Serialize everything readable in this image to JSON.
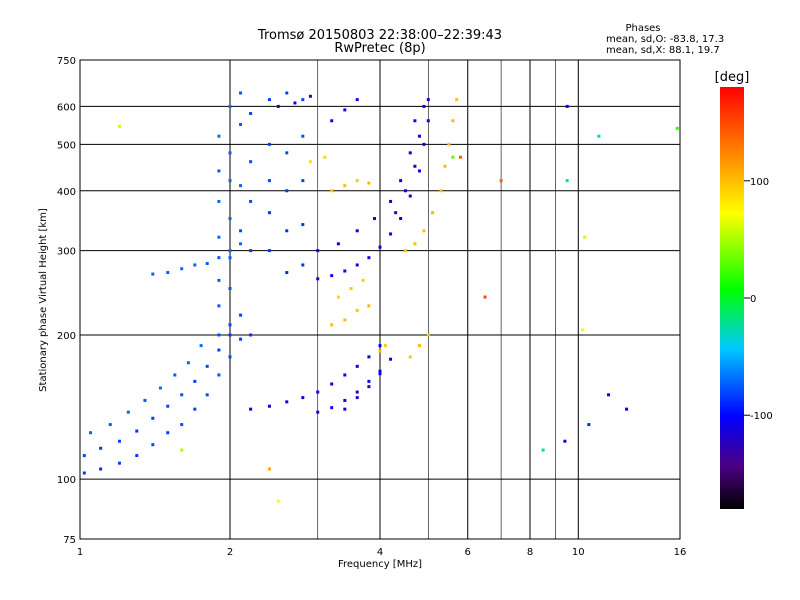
{
  "title": {
    "line1": "Tromsø 20150803 22:38:00–22:39:43",
    "line2": "RwPretec (8p)"
  },
  "stats": {
    "heading": "Phases",
    "o_line": "mean, sd,O: -83.8, 17.3",
    "x_line": "mean, sd,X: 88.1, 19.7"
  },
  "colorbar": {
    "label": "[deg]",
    "range": [
      -180,
      180
    ],
    "ticks": [
      {
        "value": 100,
        "label": "100"
      },
      {
        "value": 0,
        "label": "0"
      },
      {
        "value": -100,
        "label": "-100"
      }
    ]
  },
  "chart_data": {
    "type": "scatter",
    "xlabel": "Frequency [MHz]",
    "ylabel": "Stationary phase Virtual Height [km]",
    "xscale": "log",
    "yscale": "log",
    "xlim": [
      1,
      16
    ],
    "ylim": [
      75,
      750
    ],
    "grid": true,
    "x_ticks": [
      {
        "value": 1,
        "label": "1",
        "grid": false
      },
      {
        "value": 2,
        "label": "2",
        "grid": true
      },
      {
        "value": 4,
        "label": "4",
        "grid": true
      },
      {
        "value": 6,
        "label": "6",
        "grid": true
      },
      {
        "value": 8,
        "label": "8",
        "grid": true
      },
      {
        "value": 10,
        "label": "10",
        "grid": true
      },
      {
        "value": 16,
        "label": "16",
        "grid": false
      }
    ],
    "x_minor_grid": [
      3,
      5,
      7,
      9
    ],
    "y_ticks": [
      {
        "value": 75,
        "label": "75",
        "grid": false
      },
      {
        "value": 100,
        "label": "100",
        "grid": true
      },
      {
        "value": 200,
        "label": "200",
        "grid": true
      },
      {
        "value": 300,
        "label": "300",
        "grid": true
      },
      {
        "value": 400,
        "label": "400",
        "grid": true
      },
      {
        "value": 500,
        "label": "500",
        "grid": true
      },
      {
        "value": 600,
        "label": "600",
        "grid": true
      },
      {
        "value": 750,
        "label": "750",
        "grid": false
      }
    ],
    "series": [
      {
        "points": [
          [
            1.02,
            103,
            -85
          ],
          [
            1.1,
            105,
            -88
          ],
          [
            1.2,
            108,
            -82
          ],
          [
            1.3,
            112,
            -86
          ],
          [
            1.4,
            118,
            -80
          ],
          [
            1.5,
            125,
            -84
          ],
          [
            1.6,
            130,
            -78
          ],
          [
            1.7,
            140,
            -82
          ],
          [
            1.8,
            150,
            -80
          ],
          [
            1.9,
            165,
            -76
          ],
          [
            2.0,
            180,
            -80
          ],
          [
            2.1,
            196,
            -84
          ],
          [
            1.02,
            112,
            -80
          ],
          [
            1.1,
            116,
            -84
          ],
          [
            1.2,
            120,
            -82
          ],
          [
            1.3,
            126,
            -86
          ],
          [
            1.4,
            134,
            -84
          ],
          [
            1.5,
            142,
            -80
          ],
          [
            1.6,
            150,
            -78
          ],
          [
            1.7,
            160,
            -82
          ],
          [
            1.8,
            172,
            -80
          ],
          [
            1.9,
            186,
            -82
          ],
          [
            2.0,
            200,
            -84
          ],
          [
            1.05,
            125,
            -72
          ],
          [
            1.15,
            130,
            -74
          ],
          [
            1.25,
            138,
            -72
          ],
          [
            1.35,
            146,
            -76
          ],
          [
            1.45,
            155,
            -70
          ],
          [
            1.55,
            165,
            -74
          ],
          [
            1.65,
            175,
            -72
          ],
          [
            1.75,
            190,
            -70
          ],
          [
            1.4,
            268,
            -72
          ],
          [
            1.5,
            270,
            -74
          ],
          [
            1.6,
            275,
            -70
          ],
          [
            1.7,
            280,
            -72
          ],
          [
            1.8,
            282,
            -74
          ],
          [
            1.9,
            290,
            -76
          ],
          [
            2.0,
            300,
            -72
          ],
          [
            2.1,
            310,
            -70
          ],
          [
            1.9,
            200,
            -78
          ],
          [
            1.9,
            230,
            -76
          ],
          [
            1.9,
            260,
            -74
          ],
          [
            1.9,
            320,
            -70
          ],
          [
            1.9,
            380,
            -72
          ],
          [
            1.9,
            440,
            -74
          ],
          [
            1.9,
            520,
            -70
          ],
          [
            2.0,
            210,
            -80
          ],
          [
            2.0,
            250,
            -76
          ],
          [
            2.0,
            290,
            -74
          ],
          [
            2.0,
            350,
            -72
          ],
          [
            2.0,
            420,
            -70
          ],
          [
            2.0,
            480,
            -74
          ],
          [
            2.0,
            600,
            -70
          ],
          [
            2.1,
            220,
            -82
          ],
          [
            2.1,
            330,
            -78
          ],
          [
            2.1,
            410,
            -72
          ],
          [
            2.1,
            550,
            -74
          ],
          [
            2.1,
            640,
            -76
          ],
          [
            2.2,
            200,
            -86
          ],
          [
            2.2,
            300,
            -84
          ],
          [
            2.2,
            380,
            -80
          ],
          [
            2.2,
            460,
            -78
          ],
          [
            2.2,
            580,
            -82
          ],
          [
            2.4,
            300,
            -86
          ],
          [
            2.4,
            360,
            -84
          ],
          [
            2.4,
            420,
            -80
          ],
          [
            2.4,
            500,
            -82
          ],
          [
            2.4,
            620,
            -84
          ],
          [
            2.6,
            270,
            -88
          ],
          [
            2.6,
            330,
            -86
          ],
          [
            2.6,
            400,
            -84
          ],
          [
            2.6,
            480,
            -80
          ],
          [
            2.6,
            640,
            -82
          ],
          [
            2.8,
            280,
            -86
          ],
          [
            2.8,
            340,
            -84
          ],
          [
            2.8,
            420,
            -80
          ],
          [
            2.8,
            520,
            -78
          ],
          [
            2.8,
            620,
            -80
          ]
        ]
      },
      {
        "points": [
          [
            2.2,
            140,
            -110
          ],
          [
            2.4,
            142,
            -112
          ],
          [
            2.6,
            145,
            -108
          ],
          [
            2.8,
            148,
            -114
          ],
          [
            3.0,
            152,
            -110
          ],
          [
            3.2,
            158,
            -112
          ],
          [
            3.4,
            165,
            -108
          ],
          [
            3.6,
            172,
            -110
          ],
          [
            3.8,
            180,
            -112
          ],
          [
            4.0,
            190,
            -108
          ],
          [
            3.0,
            138,
            -110
          ],
          [
            3.2,
            141,
            -112
          ],
          [
            3.4,
            146,
            -110
          ],
          [
            3.6,
            152,
            -114
          ],
          [
            3.8,
            160,
            -110
          ],
          [
            4.0,
            168,
            -112
          ],
          [
            4.2,
            178,
            -110
          ],
          [
            3.0,
            262,
            -110
          ],
          [
            3.2,
            266,
            -112
          ],
          [
            3.4,
            272,
            -110
          ],
          [
            3.6,
            280,
            -114
          ],
          [
            3.8,
            290,
            -112
          ],
          [
            4.0,
            305,
            -110
          ],
          [
            4.2,
            325,
            -112
          ],
          [
            4.4,
            350,
            -110
          ],
          [
            4.6,
            390,
            -112
          ],
          [
            4.8,
            440,
            -110
          ],
          [
            4.9,
            500,
            -112
          ],
          [
            5.0,
            560,
            -110
          ],
          [
            5.0,
            620,
            -114
          ],
          [
            3.0,
            300,
            -110
          ],
          [
            3.3,
            310,
            -112
          ],
          [
            3.6,
            330,
            -110
          ],
          [
            3.9,
            350,
            -114
          ],
          [
            4.2,
            380,
            -112
          ],
          [
            4.4,
            420,
            -110
          ],
          [
            4.6,
            480,
            -112
          ],
          [
            4.7,
            560,
            -110
          ],
          [
            3.4,
            140,
            -108
          ],
          [
            3.6,
            148,
            -112
          ],
          [
            3.8,
            156,
            -110
          ],
          [
            4.0,
            166,
            -112
          ],
          [
            4.3,
            360,
            -118
          ],
          [
            4.5,
            400,
            -116
          ],
          [
            4.7,
            450,
            -112
          ],
          [
            4.8,
            520,
            -114
          ],
          [
            4.9,
            600,
            -110
          ],
          [
            2.5,
            600,
            -118
          ],
          [
            2.7,
            610,
            -120
          ],
          [
            2.9,
            630,
            -116
          ],
          [
            3.2,
            560,
            -114
          ],
          [
            3.4,
            590,
            -112
          ],
          [
            3.6,
            620,
            -110
          ]
        ]
      },
      {
        "points": [
          [
            3.2,
            400,
            95
          ],
          [
            3.4,
            410,
            100
          ],
          [
            3.6,
            420,
            96
          ],
          [
            3.8,
            415,
            102
          ],
          [
            3.2,
            210,
            98
          ],
          [
            3.4,
            215,
            100
          ],
          [
            3.6,
            225,
            96
          ],
          [
            3.8,
            230,
            102
          ],
          [
            4.0,
            185,
            100
          ],
          [
            4.1,
            190,
            96
          ],
          [
            4.5,
            300,
            96
          ],
          [
            4.7,
            310,
            100
          ],
          [
            4.9,
            330,
            98
          ],
          [
            5.1,
            360,
            102
          ],
          [
            5.3,
            400,
            96
          ],
          [
            5.4,
            450,
            100
          ],
          [
            5.5,
            500,
            98
          ],
          [
            5.6,
            560,
            102
          ],
          [
            5.7,
            620,
            96
          ],
          [
            4.6,
            180,
            95
          ],
          [
            4.8,
            190,
            100
          ],
          [
            5.0,
            200,
            96
          ],
          [
            3.3,
            240,
            90
          ],
          [
            3.5,
            250,
            94
          ],
          [
            3.7,
            260,
            92
          ],
          [
            2.9,
            460,
            85
          ],
          [
            3.1,
            470,
            88
          ]
        ]
      },
      {
        "points": [
          [
            1.2,
            545,
            60
          ],
          [
            1.6,
            115,
            50
          ],
          [
            5.6,
            470,
            30
          ],
          [
            9.5,
            420,
            -20
          ],
          [
            9.5,
            600,
            -110
          ],
          [
            10.3,
            320,
            60
          ],
          [
            10.2,
            205,
            70
          ],
          [
            11.0,
            520,
            -30
          ],
          [
            9.4,
            120,
            -110
          ],
          [
            10.5,
            130,
            -90
          ],
          [
            11.5,
            150,
            -100
          ],
          [
            12.5,
            140,
            -100
          ],
          [
            8.5,
            115,
            -30
          ],
          [
            5.8,
            470,
            140
          ],
          [
            6.5,
            240,
            150
          ],
          [
            7.0,
            420,
            140
          ],
          [
            2.5,
            90,
            70
          ],
          [
            2.4,
            105,
            110
          ],
          [
            15.8,
            540,
            20
          ]
        ]
      }
    ]
  }
}
